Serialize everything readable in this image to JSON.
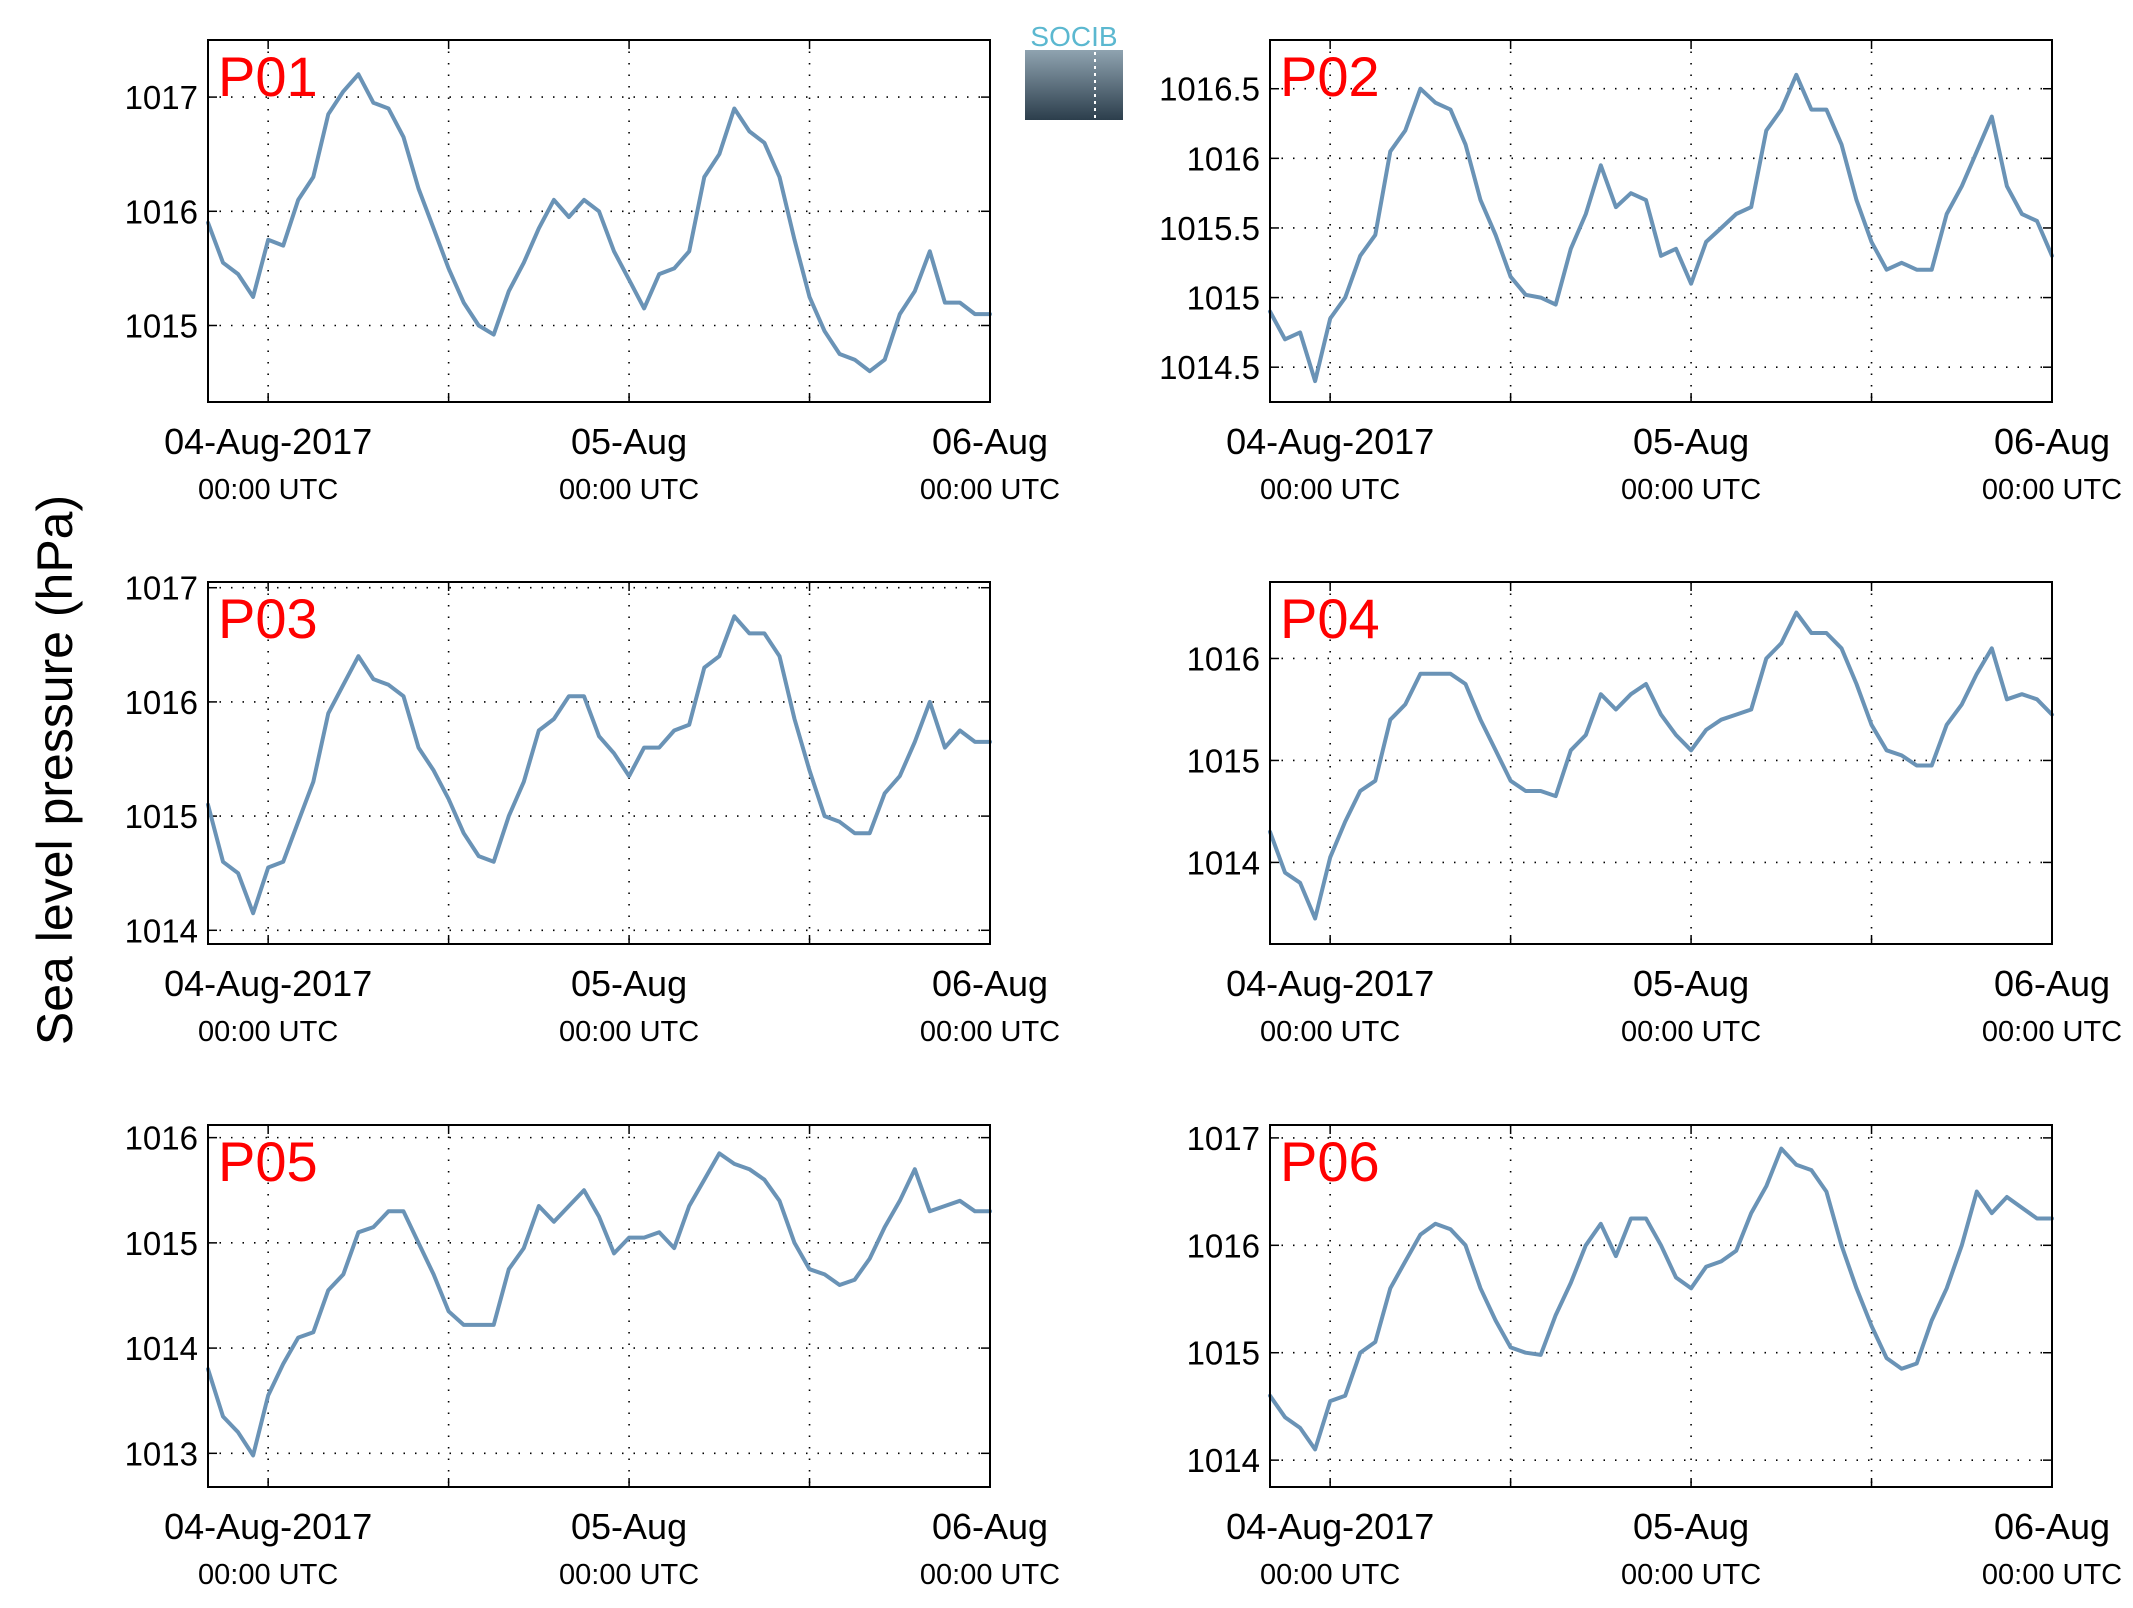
{
  "figure": {
    "ylabel": "Sea level pressure (hPa)",
    "logo_text": "SOCIB",
    "line_color": "#6A93B6",
    "panel_label_color": "#FF0000",
    "grid_style": "dotted"
  },
  "x_ticks": [
    {
      "day": 0,
      "date_label": "04-Aug-2017",
      "time_label": "00:00 UTC"
    },
    {
      "day": 1,
      "date_label": "05-Aug",
      "time_label": "00:00 UTC"
    },
    {
      "day": 2,
      "date_label": "06-Aug",
      "time_label": "00:00 UTC"
    }
  ],
  "chart_data": [
    {
      "type": "line",
      "name": "P01",
      "xlim": [
        "2017-08-03T20:00",
        "2017-08-06T00:00"
      ],
      "ylim": [
        1014.33,
        1017.5
      ],
      "yticks": [
        1015,
        1016,
        1017
      ],
      "ytick_labels": [
        "1015",
        "1016",
        "1017"
      ],
      "x": [
        "2017-08-03T20:00",
        "2017-08-03T21:00",
        "2017-08-03T22:00",
        "2017-08-03T23:00",
        "2017-08-04T00:00",
        "2017-08-04T01:00",
        "2017-08-04T02:00",
        "2017-08-04T03:00",
        "2017-08-04T04:00",
        "2017-08-04T05:00",
        "2017-08-04T06:00",
        "2017-08-04T07:00",
        "2017-08-04T08:00",
        "2017-08-04T09:00",
        "2017-08-04T10:00",
        "2017-08-04T11:00",
        "2017-08-04T12:00",
        "2017-08-04T13:00",
        "2017-08-04T14:00",
        "2017-08-04T15:00",
        "2017-08-04T16:00",
        "2017-08-04T17:00",
        "2017-08-04T18:00",
        "2017-08-04T19:00",
        "2017-08-04T20:00",
        "2017-08-04T21:00",
        "2017-08-04T22:00",
        "2017-08-04T23:00",
        "2017-08-05T00:00",
        "2017-08-05T01:00",
        "2017-08-05T02:00",
        "2017-08-05T03:00",
        "2017-08-05T04:00",
        "2017-08-05T05:00",
        "2017-08-05T06:00",
        "2017-08-05T07:00",
        "2017-08-05T08:00",
        "2017-08-05T09:00",
        "2017-08-05T10:00",
        "2017-08-05T11:00",
        "2017-08-05T12:00",
        "2017-08-05T13:00",
        "2017-08-05T14:00",
        "2017-08-05T15:00",
        "2017-08-05T16:00",
        "2017-08-05T17:00",
        "2017-08-05T18:00",
        "2017-08-05T19:00",
        "2017-08-05T20:00",
        "2017-08-05T21:00",
        "2017-08-05T22:00",
        "2017-08-05T23:00",
        "2017-08-06T00:00"
      ],
      "values": [
        1015.9,
        1015.55,
        1015.45,
        1015.25,
        1015.75,
        1015.7,
        1016.1,
        1016.3,
        1016.85,
        1017.05,
        1017.2,
        1016.95,
        1016.9,
        1016.65,
        1016.2,
        1015.85,
        1015.5,
        1015.2,
        1015.0,
        1014.92,
        1015.3,
        1015.55,
        1015.85,
        1016.1,
        1015.95,
        1016.1,
        1016.0,
        1015.65,
        1015.4,
        1015.15,
        1015.45,
        1015.5,
        1015.65,
        1016.3,
        1016.5,
        1016.9,
        1016.7,
        1016.6,
        1016.3,
        1015.75,
        1015.25,
        1014.95,
        1014.75,
        1014.7,
        1014.6,
        1014.7,
        1015.1,
        1015.3,
        1015.65,
        1015.2,
        1015.2,
        1015.1,
        1015.1
      ]
    },
    {
      "type": "line",
      "name": "P02",
      "xlim": [
        "2017-08-03T20:00",
        "2017-08-06T00:00"
      ],
      "ylim": [
        1014.25,
        1016.85
      ],
      "yticks": [
        1014.5,
        1015,
        1015.5,
        1016,
        1016.5
      ],
      "ytick_labels": [
        "1014.5",
        "1015",
        "1015.5",
        "1016",
        "1016.5"
      ],
      "x": [
        "2017-08-03T20:00",
        "2017-08-03T21:00",
        "2017-08-03T22:00",
        "2017-08-03T23:00",
        "2017-08-04T00:00",
        "2017-08-04T01:00",
        "2017-08-04T02:00",
        "2017-08-04T03:00",
        "2017-08-04T04:00",
        "2017-08-04T05:00",
        "2017-08-04T06:00",
        "2017-08-04T07:00",
        "2017-08-04T08:00",
        "2017-08-04T09:00",
        "2017-08-04T10:00",
        "2017-08-04T11:00",
        "2017-08-04T12:00",
        "2017-08-04T13:00",
        "2017-08-04T14:00",
        "2017-08-04T15:00",
        "2017-08-04T16:00",
        "2017-08-04T17:00",
        "2017-08-04T18:00",
        "2017-08-04T19:00",
        "2017-08-04T20:00",
        "2017-08-04T21:00",
        "2017-08-04T22:00",
        "2017-08-04T23:00",
        "2017-08-05T00:00",
        "2017-08-05T01:00",
        "2017-08-05T02:00",
        "2017-08-05T03:00",
        "2017-08-05T04:00",
        "2017-08-05T05:00",
        "2017-08-05T06:00",
        "2017-08-05T07:00",
        "2017-08-05T08:00",
        "2017-08-05T09:00",
        "2017-08-05T10:00",
        "2017-08-05T11:00",
        "2017-08-05T12:00",
        "2017-08-05T13:00",
        "2017-08-05T14:00",
        "2017-08-05T15:00",
        "2017-08-05T16:00",
        "2017-08-05T17:00",
        "2017-08-05T18:00",
        "2017-08-05T19:00",
        "2017-08-05T20:00",
        "2017-08-05T21:00",
        "2017-08-05T22:00",
        "2017-08-05T23:00",
        "2017-08-06T00:00"
      ],
      "values": [
        1014.9,
        1014.7,
        1014.75,
        1014.4,
        1014.85,
        1015.0,
        1015.3,
        1015.45,
        1016.05,
        1016.2,
        1016.5,
        1016.4,
        1016.35,
        1016.1,
        1015.7,
        1015.45,
        1015.15,
        1015.02,
        1015.0,
        1014.95,
        1015.35,
        1015.6,
        1015.95,
        1015.65,
        1015.75,
        1015.7,
        1015.3,
        1015.35,
        1015.1,
        1015.4,
        1015.5,
        1015.6,
        1015.65,
        1016.2,
        1016.35,
        1016.6,
        1016.35,
        1016.35,
        1016.1,
        1015.7,
        1015.4,
        1015.2,
        1015.25,
        1015.2,
        1015.2,
        1015.6,
        1015.8,
        1016.05,
        1016.3,
        1015.8,
        1015.6,
        1015.55,
        1015.3
      ]
    },
    {
      "type": "line",
      "name": "P03",
      "xlim": [
        "2017-08-03T20:00",
        "2017-08-06T00:00"
      ],
      "ylim": [
        1013.88,
        1017.05
      ],
      "yticks": [
        1014,
        1015,
        1016,
        1017
      ],
      "ytick_labels": [
        "1014",
        "1015",
        "1016",
        "1017"
      ],
      "x": [
        "2017-08-03T20:00",
        "2017-08-03T21:00",
        "2017-08-03T22:00",
        "2017-08-03T23:00",
        "2017-08-04T00:00",
        "2017-08-04T01:00",
        "2017-08-04T02:00",
        "2017-08-04T03:00",
        "2017-08-04T04:00",
        "2017-08-04T05:00",
        "2017-08-04T06:00",
        "2017-08-04T07:00",
        "2017-08-04T08:00",
        "2017-08-04T09:00",
        "2017-08-04T10:00",
        "2017-08-04T11:00",
        "2017-08-04T12:00",
        "2017-08-04T13:00",
        "2017-08-04T14:00",
        "2017-08-04T15:00",
        "2017-08-04T16:00",
        "2017-08-04T17:00",
        "2017-08-04T18:00",
        "2017-08-04T19:00",
        "2017-08-04T20:00",
        "2017-08-04T21:00",
        "2017-08-04T22:00",
        "2017-08-04T23:00",
        "2017-08-05T00:00",
        "2017-08-05T01:00",
        "2017-08-05T02:00",
        "2017-08-05T03:00",
        "2017-08-05T04:00",
        "2017-08-05T05:00",
        "2017-08-05T06:00",
        "2017-08-05T07:00",
        "2017-08-05T08:00",
        "2017-08-05T09:00",
        "2017-08-05T10:00",
        "2017-08-05T11:00",
        "2017-08-05T12:00",
        "2017-08-05T13:00",
        "2017-08-05T14:00",
        "2017-08-05T15:00",
        "2017-08-05T16:00",
        "2017-08-05T17:00",
        "2017-08-05T18:00",
        "2017-08-05T19:00",
        "2017-08-05T20:00",
        "2017-08-05T21:00",
        "2017-08-05T22:00",
        "2017-08-05T23:00",
        "2017-08-06T00:00"
      ],
      "values": [
        1015.1,
        1014.6,
        1014.5,
        1014.15,
        1014.55,
        1014.6,
        1014.95,
        1015.3,
        1015.9,
        1016.15,
        1016.4,
        1016.2,
        1016.15,
        1016.05,
        1015.6,
        1015.4,
        1015.15,
        1014.85,
        1014.65,
        1014.6,
        1015.0,
        1015.3,
        1015.75,
        1015.85,
        1016.05,
        1016.05,
        1015.7,
        1015.55,
        1015.35,
        1015.6,
        1015.6,
        1015.75,
        1015.8,
        1016.3,
        1016.4,
        1016.75,
        1016.6,
        1016.6,
        1016.4,
        1015.85,
        1015.4,
        1015.0,
        1014.95,
        1014.85,
        1014.85,
        1015.2,
        1015.35,
        1015.65,
        1016.0,
        1015.6,
        1015.75,
        1015.65,
        1015.65
      ]
    },
    {
      "type": "line",
      "name": "P04",
      "xlim": [
        "2017-08-03T20:00",
        "2017-08-06T00:00"
      ],
      "ylim": [
        1013.2,
        1016.75
      ],
      "yticks": [
        1014,
        1015,
        1016
      ],
      "ytick_labels": [
        "1014",
        "1015",
        "1016"
      ],
      "x": [
        "2017-08-03T20:00",
        "2017-08-03T21:00",
        "2017-08-03T22:00",
        "2017-08-03T23:00",
        "2017-08-04T00:00",
        "2017-08-04T01:00",
        "2017-08-04T02:00",
        "2017-08-04T03:00",
        "2017-08-04T04:00",
        "2017-08-04T05:00",
        "2017-08-04T06:00",
        "2017-08-04T07:00",
        "2017-08-04T08:00",
        "2017-08-04T09:00",
        "2017-08-04T10:00",
        "2017-08-04T11:00",
        "2017-08-04T12:00",
        "2017-08-04T13:00",
        "2017-08-04T14:00",
        "2017-08-04T15:00",
        "2017-08-04T16:00",
        "2017-08-04T17:00",
        "2017-08-04T18:00",
        "2017-08-04T19:00",
        "2017-08-04T20:00",
        "2017-08-04T21:00",
        "2017-08-04T22:00",
        "2017-08-04T23:00",
        "2017-08-05T00:00",
        "2017-08-05T01:00",
        "2017-08-05T02:00",
        "2017-08-05T03:00",
        "2017-08-05T04:00",
        "2017-08-05T05:00",
        "2017-08-05T06:00",
        "2017-08-05T07:00",
        "2017-08-05T08:00",
        "2017-08-05T09:00",
        "2017-08-05T10:00",
        "2017-08-05T11:00",
        "2017-08-05T12:00",
        "2017-08-05T13:00",
        "2017-08-05T14:00",
        "2017-08-05T15:00",
        "2017-08-05T16:00",
        "2017-08-05T17:00",
        "2017-08-05T18:00",
        "2017-08-05T19:00",
        "2017-08-05T20:00",
        "2017-08-05T21:00",
        "2017-08-05T22:00",
        "2017-08-05T23:00",
        "2017-08-06T00:00"
      ],
      "values": [
        1014.3,
        1013.9,
        1013.8,
        1013.45,
        1014.05,
        1014.4,
        1014.7,
        1014.8,
        1015.4,
        1015.55,
        1015.85,
        1015.85,
        1015.85,
        1015.75,
        1015.4,
        1015.1,
        1014.8,
        1014.7,
        1014.7,
        1014.65,
        1015.1,
        1015.25,
        1015.65,
        1015.5,
        1015.65,
        1015.75,
        1015.45,
        1015.25,
        1015.1,
        1015.3,
        1015.4,
        1015.45,
        1015.5,
        1016.0,
        1016.15,
        1016.45,
        1016.25,
        1016.25,
        1016.1,
        1015.75,
        1015.35,
        1015.1,
        1015.05,
        1014.95,
        1014.95,
        1015.35,
        1015.55,
        1015.85,
        1016.1,
        1015.6,
        1015.65,
        1015.6,
        1015.45
      ]
    },
    {
      "type": "line",
      "name": "P05",
      "xlim": [
        "2017-08-03T20:00",
        "2017-08-06T00:00"
      ],
      "ylim": [
        1012.68,
        1016.12
      ],
      "yticks": [
        1013,
        1014,
        1015,
        1016
      ],
      "ytick_labels": [
        "1013",
        "1014",
        "1015",
        "1016"
      ],
      "x": [
        "2017-08-03T20:00",
        "2017-08-03T21:00",
        "2017-08-03T22:00",
        "2017-08-03T23:00",
        "2017-08-04T00:00",
        "2017-08-04T01:00",
        "2017-08-04T02:00",
        "2017-08-04T03:00",
        "2017-08-04T04:00",
        "2017-08-04T05:00",
        "2017-08-04T06:00",
        "2017-08-04T07:00",
        "2017-08-04T08:00",
        "2017-08-04T09:00",
        "2017-08-04T10:00",
        "2017-08-04T11:00",
        "2017-08-04T12:00",
        "2017-08-04T13:00",
        "2017-08-04T14:00",
        "2017-08-04T15:00",
        "2017-08-04T16:00",
        "2017-08-04T17:00",
        "2017-08-04T18:00",
        "2017-08-04T19:00",
        "2017-08-04T20:00",
        "2017-08-04T21:00",
        "2017-08-04T22:00",
        "2017-08-04T23:00",
        "2017-08-05T00:00",
        "2017-08-05T01:00",
        "2017-08-05T02:00",
        "2017-08-05T03:00",
        "2017-08-05T04:00",
        "2017-08-05T05:00",
        "2017-08-05T06:00",
        "2017-08-05T07:00",
        "2017-08-05T08:00",
        "2017-08-05T09:00",
        "2017-08-05T10:00",
        "2017-08-05T11:00",
        "2017-08-05T12:00",
        "2017-08-05T13:00",
        "2017-08-05T14:00",
        "2017-08-05T15:00",
        "2017-08-05T16:00",
        "2017-08-05T17:00",
        "2017-08-05T18:00",
        "2017-08-05T19:00",
        "2017-08-05T20:00",
        "2017-08-05T21:00",
        "2017-08-05T22:00",
        "2017-08-05T23:00",
        "2017-08-06T00:00"
      ],
      "values": [
        1013.8,
        1013.35,
        1013.2,
        1012.98,
        1013.55,
        1013.85,
        1014.1,
        1014.15,
        1014.55,
        1014.7,
        1015.1,
        1015.15,
        1015.3,
        1015.3,
        1015.0,
        1014.7,
        1014.35,
        1014.22,
        1014.22,
        1014.22,
        1014.75,
        1014.95,
        1015.35,
        1015.2,
        1015.35,
        1015.5,
        1015.25,
        1014.9,
        1015.05,
        1015.05,
        1015.1,
        1014.95,
        1015.35,
        1015.6,
        1015.85,
        1015.75,
        1015.7,
        1015.6,
        1015.4,
        1015.0,
        1014.75,
        1014.7,
        1014.6,
        1014.65,
        1014.85,
        1015.15,
        1015.4,
        1015.7,
        1015.3,
        1015.35,
        1015.4,
        1015.3,
        1015.3
      ]
    },
    {
      "type": "line",
      "name": "P06",
      "xlim": [
        "2017-08-03T20:00",
        "2017-08-06T00:00"
      ],
      "ylim": [
        1013.75,
        1017.12
      ],
      "yticks": [
        1014,
        1015,
        1016,
        1017
      ],
      "ytick_labels": [
        "1014",
        "1015",
        "1016",
        "1017"
      ],
      "x": [
        "2017-08-03T20:00",
        "2017-08-03T21:00",
        "2017-08-03T22:00",
        "2017-08-03T23:00",
        "2017-08-04T00:00",
        "2017-08-04T01:00",
        "2017-08-04T02:00",
        "2017-08-04T03:00",
        "2017-08-04T04:00",
        "2017-08-04T05:00",
        "2017-08-04T06:00",
        "2017-08-04T07:00",
        "2017-08-04T08:00",
        "2017-08-04T09:00",
        "2017-08-04T10:00",
        "2017-08-04T11:00",
        "2017-08-04T12:00",
        "2017-08-04T13:00",
        "2017-08-04T14:00",
        "2017-08-04T15:00",
        "2017-08-04T16:00",
        "2017-08-04T17:00",
        "2017-08-04T18:00",
        "2017-08-04T19:00",
        "2017-08-04T20:00",
        "2017-08-04T21:00",
        "2017-08-04T22:00",
        "2017-08-04T23:00",
        "2017-08-05T00:00",
        "2017-08-05T01:00",
        "2017-08-05T02:00",
        "2017-08-05T03:00",
        "2017-08-05T04:00",
        "2017-08-05T05:00",
        "2017-08-05T06:00",
        "2017-08-05T07:00",
        "2017-08-05T08:00",
        "2017-08-05T09:00",
        "2017-08-05T10:00",
        "2017-08-05T11:00",
        "2017-08-05T12:00",
        "2017-08-05T13:00",
        "2017-08-05T14:00",
        "2017-08-05T15:00",
        "2017-08-05T16:00",
        "2017-08-05T17:00",
        "2017-08-05T18:00",
        "2017-08-05T19:00",
        "2017-08-05T20:00",
        "2017-08-05T21:00",
        "2017-08-05T22:00",
        "2017-08-05T23:00",
        "2017-08-06T00:00"
      ],
      "values": [
        1014.6,
        1014.4,
        1014.3,
        1014.1,
        1014.55,
        1014.6,
        1015.0,
        1015.1,
        1015.6,
        1015.85,
        1016.1,
        1016.2,
        1016.15,
        1016.0,
        1015.6,
        1015.3,
        1015.05,
        1015.0,
        1014.98,
        1015.35,
        1015.65,
        1016.0,
        1016.2,
        1015.9,
        1016.25,
        1016.25,
        1016.0,
        1015.7,
        1015.6,
        1015.8,
        1015.85,
        1015.95,
        1016.3,
        1016.55,
        1016.9,
        1016.75,
        1016.7,
        1016.5,
        1016.0,
        1015.6,
        1015.25,
        1014.95,
        1014.85,
        1014.9,
        1015.3,
        1015.6,
        1016.0,
        1016.5,
        1016.3,
        1016.45,
        1016.35,
        1016.25,
        1016.25
      ]
    }
  ]
}
